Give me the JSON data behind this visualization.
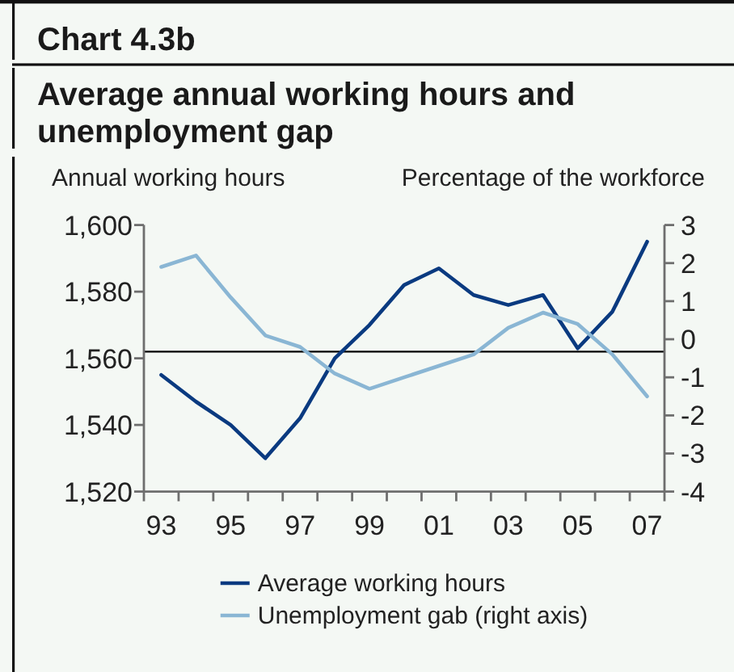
{
  "chart_data": {
    "type": "line",
    "title": "Average annual working hours and unemployment gap",
    "annotations": [
      "Chart 4.3b"
    ],
    "ylabel": "Annual working hours",
    "y2label": "Percentage of the workforce",
    "categories": [
      "93",
      null,
      "95",
      null,
      "97",
      null,
      "99",
      null,
      "01",
      null,
      "03",
      null,
      "05",
      null,
      "07"
    ],
    "series": [
      {
        "name": "Average working hours",
        "color": "#0a3a80",
        "values": [
          1555,
          1547,
          1540,
          1530,
          1542,
          1560,
          1570,
          1582,
          1587,
          1579,
          1576,
          1579,
          1563,
          1574,
          1595
        ]
      },
      {
        "name": "Unemployment gab (right axis)",
        "color": "#8ab6d4",
        "axis": "y2",
        "values": [
          1.9,
          2.2,
          1.1,
          0.1,
          -0.2,
          -0.9,
          -1.3,
          -1.0,
          -0.7,
          -0.4,
          0.3,
          0.7,
          0.4,
          -0.4,
          -1.5
        ]
      }
    ],
    "ylim": [
      1520,
      1600
    ],
    "yticks": [
      {
        "value": 1520,
        "label": "1,520"
      },
      {
        "value": 1540,
        "label": "1,540"
      },
      {
        "value": 1560,
        "label": "1,560"
      },
      {
        "value": 1580,
        "label": "1,580"
      },
      {
        "value": 1600,
        "label": "1,600"
      }
    ],
    "y2lim": [
      -4,
      3
    ],
    "y2ticks": [
      -4,
      -3,
      -2,
      -1,
      0,
      1,
      2,
      3
    ],
    "ref_lines": [
      {
        "axis": "y",
        "value": 1562,
        "color": "#000000"
      }
    ],
    "legend": "bottom"
  }
}
